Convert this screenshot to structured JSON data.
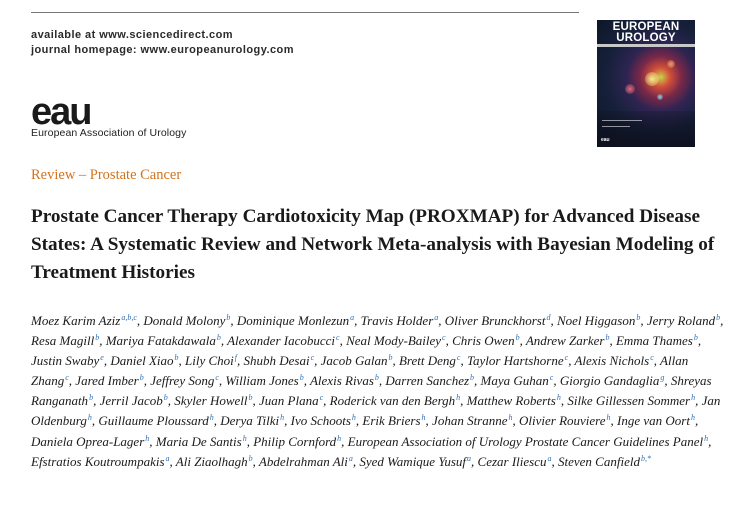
{
  "header": {
    "available": "available at www.sciencedirect.com",
    "journal": "journal homepage: www.europeanurology.com"
  },
  "cover": {
    "line1": "EUROPEAN",
    "line2": "UROLOGY",
    "logo": "eau"
  },
  "logo": {
    "mark": "eau",
    "name": "European Association of Urology"
  },
  "section": "Review – Prostate Cancer",
  "title": "Prostate Cancer Therapy Cardiotoxicity Map (PROXMAP) for Advanced Disease States: A Systematic Review and Network Meta-analysis with Bayesian Modeling of Treatment Histories",
  "authors": [
    {
      "name": "Moez Karim Aziz",
      "aff": "a,b,c"
    },
    {
      "name": "Donald Molony",
      "aff": "b"
    },
    {
      "name": "Dominique Monlezun",
      "aff": "a"
    },
    {
      "name": "Travis Holder",
      "aff": "a"
    },
    {
      "name": "Oliver Brunckhorst",
      "aff": "d"
    },
    {
      "name": "Noel Higgason",
      "aff": "b"
    },
    {
      "name": "Jerry Roland",
      "aff": "b"
    },
    {
      "name": "Resa Magill",
      "aff": "b"
    },
    {
      "name": "Mariya Fatakdawala",
      "aff": "b"
    },
    {
      "name": "Alexander Iacobucci",
      "aff": "c"
    },
    {
      "name": "Neal Mody-Bailey",
      "aff": "c"
    },
    {
      "name": "Chris Owen",
      "aff": "b"
    },
    {
      "name": "Andrew Zarker",
      "aff": "b"
    },
    {
      "name": "Emma Thames",
      "aff": "b"
    },
    {
      "name": "Justin Swaby",
      "aff": "e"
    },
    {
      "name": "Daniel Xiao",
      "aff": "b"
    },
    {
      "name": "Lily Choi",
      "aff": "f"
    },
    {
      "name": "Shubh Desai",
      "aff": "c"
    },
    {
      "name": "Jacob Galan",
      "aff": "b"
    },
    {
      "name": "Brett Deng",
      "aff": "c"
    },
    {
      "name": "Taylor Hartshorne",
      "aff": "c"
    },
    {
      "name": "Alexis Nichols",
      "aff": "c"
    },
    {
      "name": "Allan Zhang",
      "aff": "c"
    },
    {
      "name": "Jared Imber",
      "aff": "b"
    },
    {
      "name": "Jeffrey Song",
      "aff": "c"
    },
    {
      "name": "William Jones",
      "aff": "b"
    },
    {
      "name": "Alexis Rivas",
      "aff": "b"
    },
    {
      "name": "Darren Sanchez",
      "aff": "b"
    },
    {
      "name": "Maya Guhan",
      "aff": "c"
    },
    {
      "name": "Giorgio Gandaglia",
      "aff": "g"
    },
    {
      "name": "Shreyas Ranganath",
      "aff": "b"
    },
    {
      "name": "Jerril Jacob",
      "aff": "b"
    },
    {
      "name": "Skyler Howell",
      "aff": "b"
    },
    {
      "name": "Juan Plana",
      "aff": "c"
    },
    {
      "name": "Roderick van den Bergh",
      "aff": "h"
    },
    {
      "name": "Matthew Roberts",
      "aff": "h"
    },
    {
      "name": "Silke Gillessen Sommer",
      "aff": "h"
    },
    {
      "name": "Jan Oldenburg",
      "aff": "h"
    },
    {
      "name": "Guillaume Ploussard",
      "aff": "h"
    },
    {
      "name": "Derya Tilki",
      "aff": "h"
    },
    {
      "name": "Ivo Schoots",
      "aff": "h"
    },
    {
      "name": "Erik Briers",
      "aff": "h"
    },
    {
      "name": "Johan Stranne",
      "aff": "h"
    },
    {
      "name": "Olivier Rouviere",
      "aff": "h"
    },
    {
      "name": "Inge van Oort",
      "aff": "h"
    },
    {
      "name": "Daniela Oprea-Lager",
      "aff": "h"
    },
    {
      "name": "Maria De Santis",
      "aff": "h"
    },
    {
      "name": "Philip Cornford",
      "aff": "h"
    },
    {
      "name": "European Association of Urology Prostate Cancer Guidelines Panel",
      "aff": "h"
    },
    {
      "name": "Efstratios Koutroumpakis",
      "aff": "a"
    },
    {
      "name": "Ali Ziaolhagh",
      "aff": "b"
    },
    {
      "name": "Abdelrahman Ali",
      "aff": "a"
    },
    {
      "name": "Syed Wamique Yusuf",
      "aff": "a"
    },
    {
      "name": "Cezar Iliescu",
      "aff": "a"
    },
    {
      "name": "Steven Canfield",
      "aff": "b,*"
    }
  ],
  "colors": {
    "section": "#d4731c",
    "affiliation": "#2f6fb5",
    "text": "#1a1a1a"
  }
}
